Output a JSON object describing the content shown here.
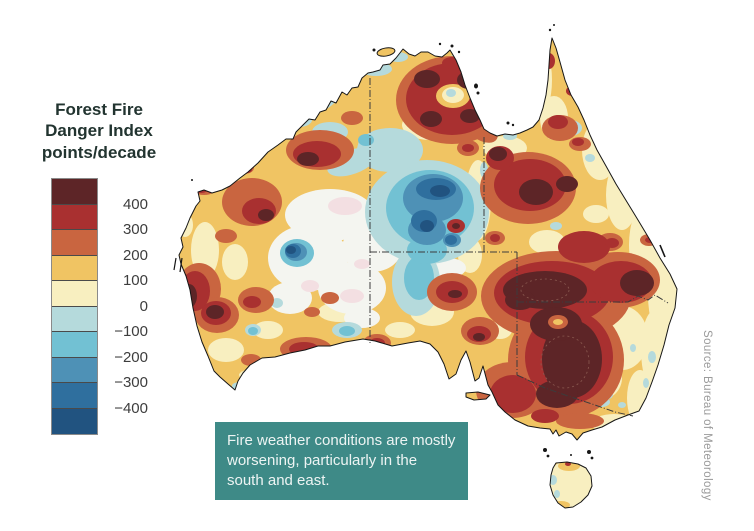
{
  "legend": {
    "title_lines": [
      "Forest Fire",
      "Danger Index",
      "points/decade"
    ],
    "labels": [
      "400",
      "300",
      "200",
      "100",
      "0",
      "−100",
      "−200",
      "−300",
      "−400"
    ],
    "colors": [
      "#5D2527",
      "#A93030",
      "#C96540",
      "#F0C463",
      "#F8EFC0",
      "#B5DADC",
      "#72C1D3",
      "#4E91B6",
      "#2F6F9E",
      "#215380"
    ]
  },
  "caption": {
    "text": "Fire weather conditions are mostly worsening, particularly in the south and east.",
    "background": "#3E8A87"
  },
  "source": {
    "text": "Source: Bureau of Meteorology"
  },
  "map": {
    "region": "Australia",
    "subject": "Forest Fire Danger Index trend, points per decade",
    "extra_colors": {
      "near_zero_white": "#F4F5F0",
      "near_zero_pink": "#F3DFE2",
      "coastline": "#161616",
      "state_border": "#3c3c3c"
    }
  }
}
